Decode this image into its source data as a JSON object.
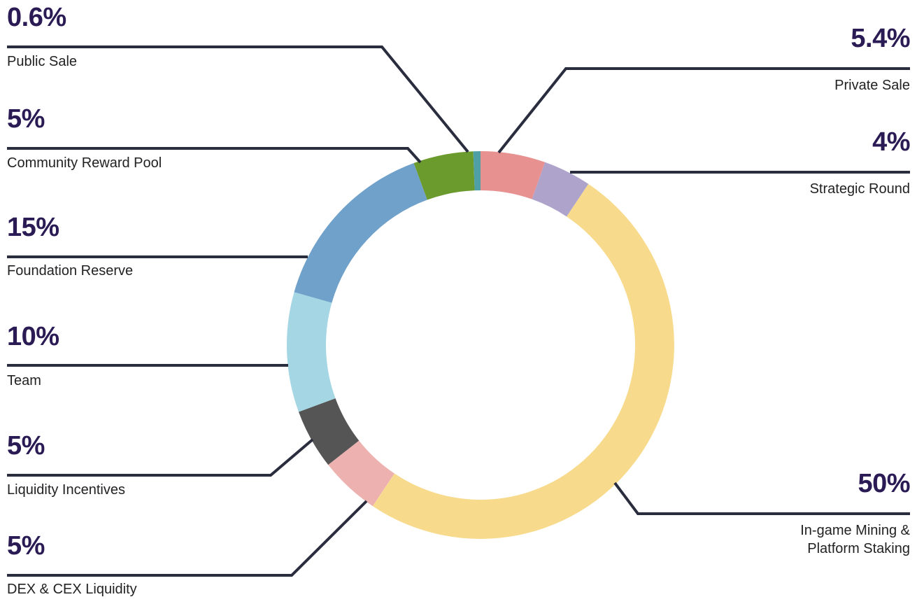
{
  "chart_data": {
    "type": "pie",
    "variant": "donut",
    "title": "",
    "segments": [
      {
        "label": "Private Sale",
        "value_label": "5.4%",
        "value": 5.4,
        "color": "#e79191"
      },
      {
        "label": "Strategic Round",
        "value_label": "4%",
        "value": 4,
        "color": "#aea3cb"
      },
      {
        "label_line1": "In-game Mining &",
        "label_line2": "Platform Staking",
        "value_label": "50%",
        "value": 50,
        "color": "#f8da8c"
      },
      {
        "label": "DEX & CEX Liquidity",
        "value_label": "5%",
        "value": 5,
        "color": "#edb2b0"
      },
      {
        "label": "Liquidity Incentives",
        "value_label": "5%",
        "value": 5,
        "color": "#545554"
      },
      {
        "label": "Team",
        "value_label": "10%",
        "value": 10,
        "color": "#a5d6e4"
      },
      {
        "label": "Foundation Reserve",
        "value_label": "15%",
        "value": 15,
        "color": "#6fa1ca"
      },
      {
        "label": "Community Reward Pool",
        "value_label": "5%",
        "value": 5,
        "color": "#6b9a2d"
      },
      {
        "label": "Public Sale",
        "value_label": "0.6%",
        "value": 0.6,
        "color": "#4f9fa6"
      }
    ],
    "start_angle_deg": 0,
    "direction": "clockwise",
    "leader_line_color": "#2a2d3e",
    "value_text_color": "#2a1b55"
  }
}
